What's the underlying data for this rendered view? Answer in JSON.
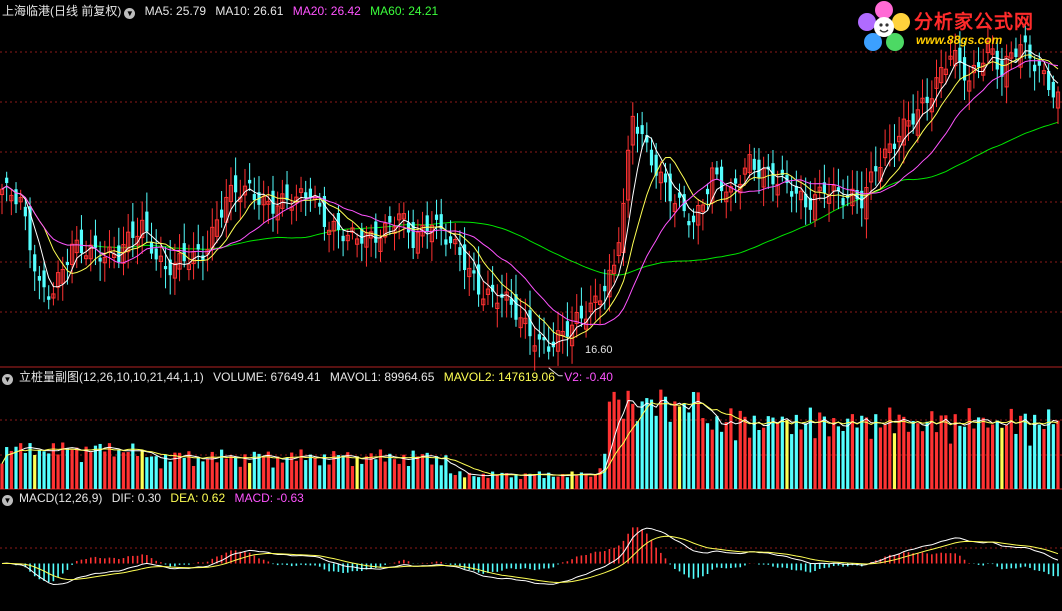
{
  "main_header": {
    "title": "上海临港(日线 前复权)",
    "ma5": "MA5: 25.79",
    "ma10": "MA10: 26.61",
    "ma20": "MA20: 26.42",
    "ma60": "MA60: 24.21"
  },
  "volume_header": {
    "name": "立桩量副图(12,26,10,10,21,44,1,1)",
    "volume": "VOLUME: 67649.41",
    "mavol1": "MAVOL1: 89964.65",
    "mavol2": "MAVOL2: 147619.06",
    "v2": "V2: -0.40"
  },
  "macd_header": {
    "name": "MACD(12,26,9)",
    "dif": "DIF: 0.30",
    "dea": "DEA: 0.62",
    "macd": "MACD: -0.63"
  },
  "logo": {
    "text": "分析家公式网",
    "url": "www.88gs.com"
  },
  "annotations": {
    "low_label": "16.60"
  },
  "colors": {
    "up": "#ff3232",
    "down": "#54ffff",
    "ma5": "#ffffff",
    "ma10": "#ffff54",
    "ma20": "#ff54ff",
    "ma60": "#00e600",
    "grid": "#8b1a1a",
    "border": "#b22222"
  },
  "chart_data": {
    "type": "candlestick",
    "symbol": "上海临港",
    "period": "日线 前复权",
    "low_marker": 16.6,
    "series": [
      {
        "name": "MA5",
        "last": 25.79
      },
      {
        "name": "MA10",
        "last": 26.61
      },
      {
        "name": "MA20",
        "last": 26.42
      },
      {
        "name": "MA60",
        "last": 24.21
      }
    ],
    "volume": {
      "VOLUME": 67649.41,
      "MAVOL1": 89964.65,
      "MAVOL2": 147619.06,
      "V2": -0.4
    },
    "macd": {
      "DIF": 0.3,
      "DEA": 0.62,
      "MACD": -0.63
    }
  }
}
